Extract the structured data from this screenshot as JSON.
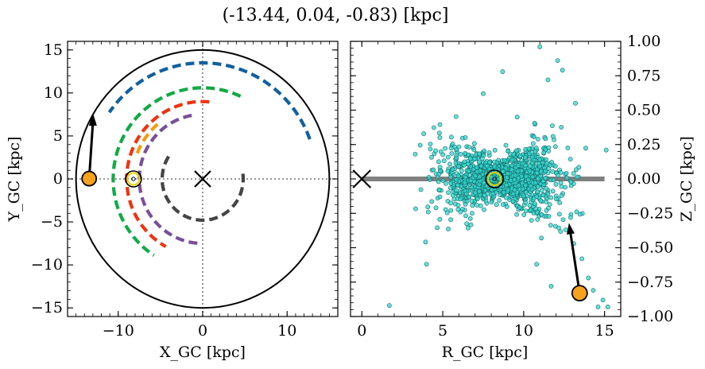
{
  "figure": {
    "title": "(-13.44, 0.04, -0.83) [kpc]"
  },
  "chart_data": [
    {
      "type": "scatter",
      "title": "",
      "xlabel": "X_GC [kpc]",
      "ylabel": "Y_GC [kpc]",
      "xlim": [
        -16,
        16
      ],
      "ylim": [
        -16,
        16
      ],
      "xticks": [
        -10,
        0,
        10
      ],
      "yticks": [
        -15,
        -10,
        -5,
        0,
        5,
        10,
        15
      ],
      "xtick_labels": [
        "−10",
        "0",
        "10"
      ],
      "ytick_labels": [
        "−15",
        "−10",
        "−5",
        "0",
        "5",
        "10",
        "15"
      ],
      "boundary_circle_radius": 15,
      "galactic_center": [
        0,
        0
      ],
      "sun": [
        -8.2,
        0
      ],
      "object": [
        -13.44,
        0.04
      ],
      "object_arrow_end": [
        -13.0,
        7.3
      ],
      "spiral_arms": [
        {
          "name": "dark-gray-arm",
          "color": "#444444",
          "radius": 4.8,
          "start_angle_deg": 147,
          "end_angle_deg": 372
        },
        {
          "name": "purple-arm",
          "color": "#7a4f9a",
          "radius": 7.5,
          "start_angle_deg": 100,
          "end_angle_deg": 268
        },
        {
          "name": "red-arm",
          "color": "#ee3311",
          "radius": 9.0,
          "start_angle_deg": 85,
          "end_angle_deg": 241
        },
        {
          "name": "orange-arm",
          "color": "#f39c12",
          "radius": 8.3,
          "start_angle_deg": 130,
          "end_angle_deg": 162
        },
        {
          "name": "green-arm",
          "color": "#11aa44",
          "radius": 10.6,
          "start_angle_deg": 65,
          "end_angle_deg": 237
        },
        {
          "name": "blue-arm",
          "color": "#1060a0",
          "radius": 13.5,
          "start_angle_deg": 20,
          "end_angle_deg": 145
        }
      ]
    },
    {
      "type": "scatter",
      "title": "",
      "xlabel": "R_GC [kpc]",
      "ylabel": "Z_GC [kpc]",
      "xlim": [
        -0.7,
        16
      ],
      "ylim": [
        -1.0,
        1.0
      ],
      "xticks": [
        0,
        5,
        10,
        15
      ],
      "yticks": [
        -1.0,
        -0.75,
        -0.5,
        -0.25,
        0.0,
        0.25,
        0.5,
        0.75,
        1.0
      ],
      "xtick_labels": [
        "0",
        "5",
        "10",
        "15"
      ],
      "ytick_labels": [
        "−1.00",
        "−0.75",
        "−0.50",
        "−0.25",
        "0.00",
        "0.25",
        "0.50",
        "0.75",
        "1.00"
      ],
      "disk_line": {
        "x": [
          0,
          15
        ],
        "z": 0
      },
      "galactic_center": [
        0,
        0
      ],
      "sun": [
        8.2,
        0.0
      ],
      "object": [
        13.46,
        -0.83
      ],
      "object_arrow_end": [
        12.8,
        -0.32
      ],
      "stars": {
        "color": "#2fd8d0",
        "edge": "#1c6a68",
        "count": 1500,
        "distribution": "disk around R≈8.5 kpc, scale height ≈0.1 kpc, spread R≈3–15 kpc",
        "outliers": [
          [
            1.7,
            -0.92
          ],
          [
            3.3,
            0.18
          ],
          [
            4.0,
            -0.62
          ],
          [
            7.5,
            0.62
          ],
          [
            8.7,
            0.78
          ],
          [
            9.6,
            0.45
          ],
          [
            11.0,
            0.96
          ],
          [
            12.1,
            0.86
          ],
          [
            12.4,
            0.79
          ],
          [
            13.2,
            0.55
          ],
          [
            11.5,
            0.72
          ],
          [
            12.9,
            -0.28
          ],
          [
            13.6,
            -0.58
          ],
          [
            14.0,
            -0.72
          ],
          [
            14.6,
            -0.93
          ],
          [
            14.9,
            -0.88
          ],
          [
            15.2,
            -0.93
          ],
          [
            14.3,
            -0.81
          ],
          [
            13.1,
            -0.47
          ],
          [
            12.6,
            -0.37
          ],
          [
            10.8,
            -0.62
          ],
          [
            11.7,
            -0.78
          ],
          [
            15.1,
            0.21
          ]
        ]
      }
    }
  ]
}
